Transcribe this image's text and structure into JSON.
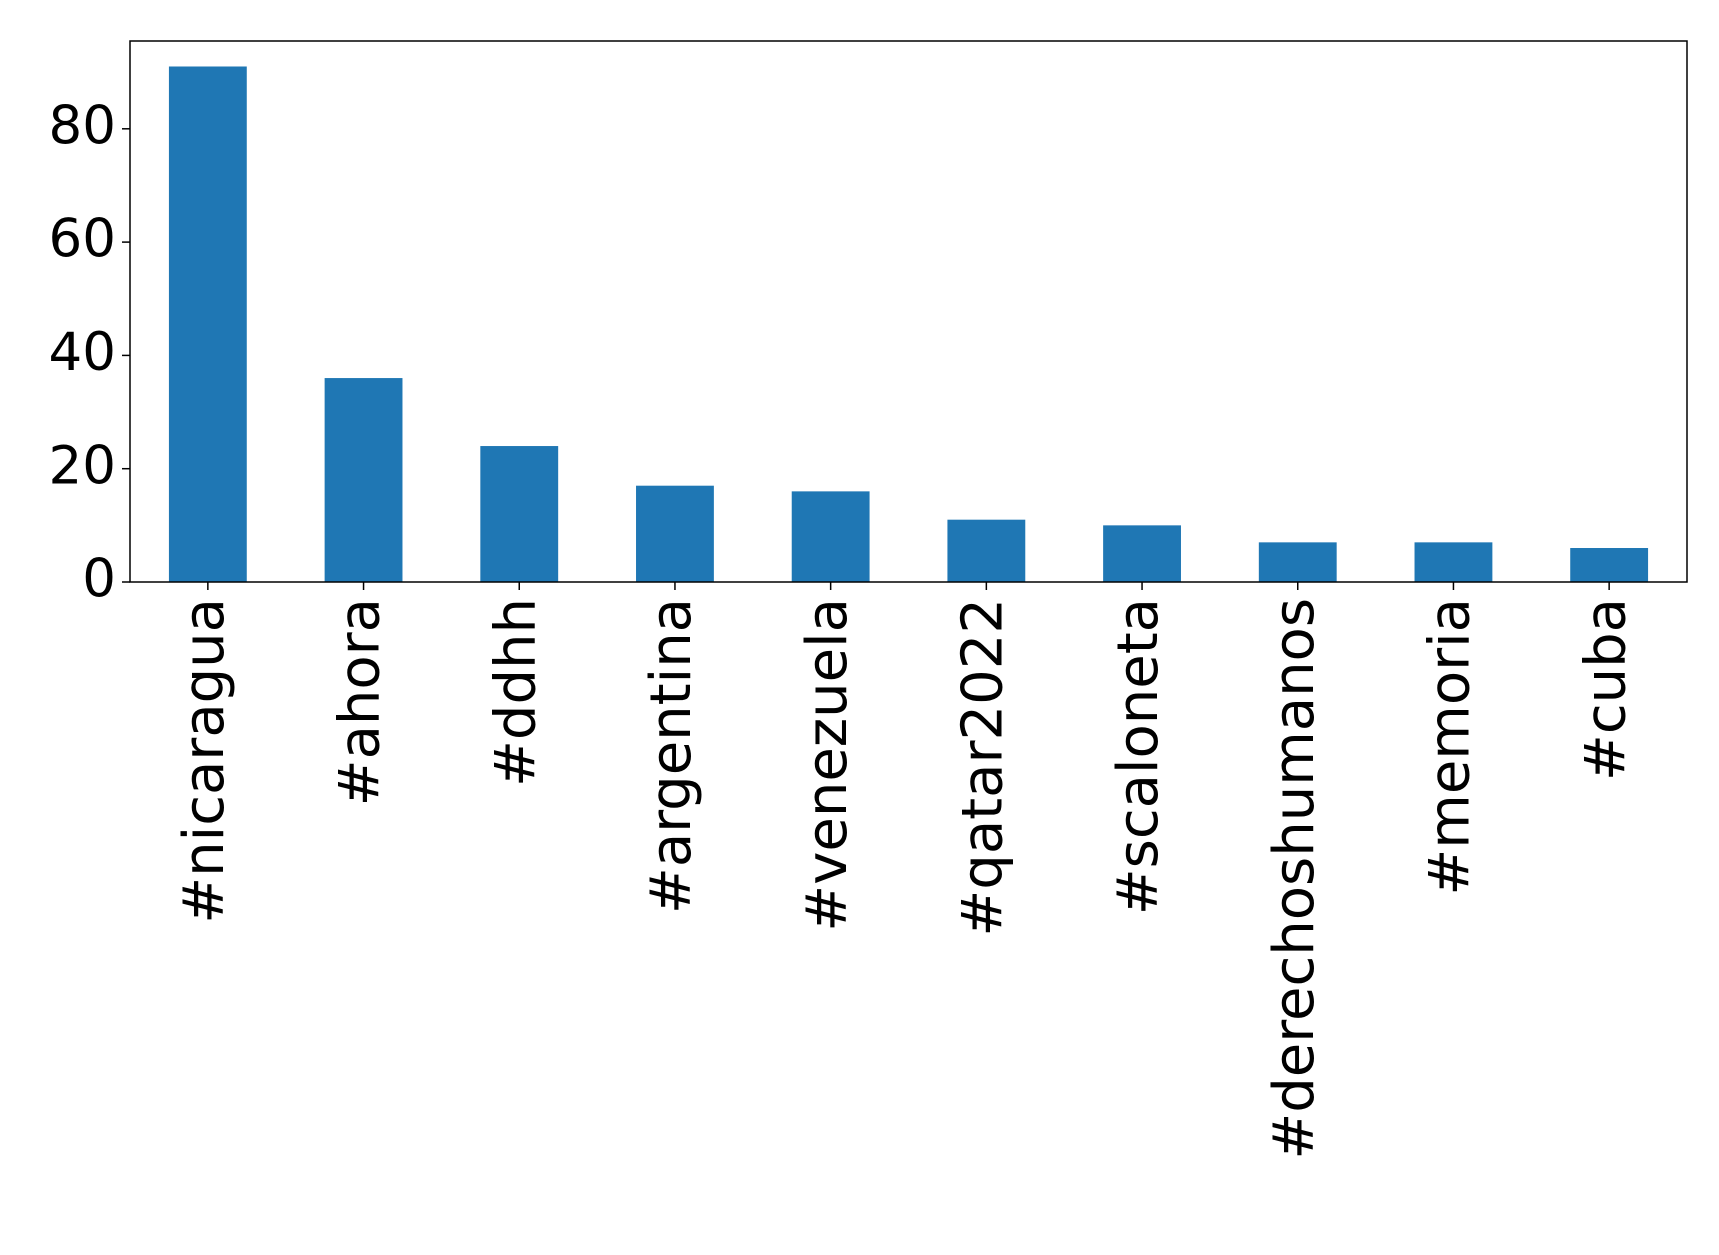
{
  "chart_data": {
    "type": "bar",
    "categories": [
      "#nicaragua",
      "#ahora",
      "#ddhh",
      "#argentina",
      "#venezuela",
      "#qatar2022",
      "#scaloneta",
      "#derechoshumanos",
      "#memoria",
      "#cuba"
    ],
    "values": [
      91,
      36,
      24,
      17,
      16,
      11,
      10,
      7,
      7,
      6
    ],
    "color": "#1f77b4",
    "ylim": [
      0,
      95.5
    ],
    "yticks": [
      0,
      20,
      40,
      60,
      80
    ]
  }
}
